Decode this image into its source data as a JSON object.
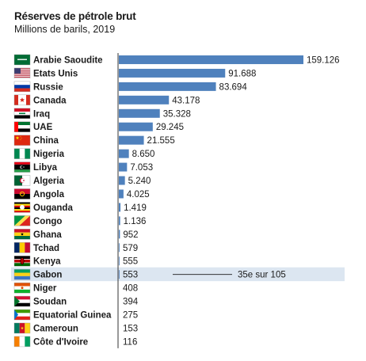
{
  "chart_data": {
    "type": "bar",
    "orientation": "horizontal",
    "title": "Réserves de pétrole brut",
    "subtitle": "Millions de barils, 2019",
    "categories": [
      "Arabie Saoudite",
      "Etats Unis",
      "Russie",
      "Canada",
      "Iraq",
      "UAE",
      "China",
      "Nigeria",
      "Libya",
      "Algeria",
      "Angola",
      "Ouganda",
      "Congo",
      "Ghana",
      "Tchad",
      "Kenya",
      "Gabon",
      "Niger",
      "Soudan",
      "Equatorial Guinea",
      "Cameroun",
      "Côte d'Ivoire"
    ],
    "values": [
      159126,
      91688,
      83694,
      43178,
      35328,
      29245,
      21555,
      8650,
      7053,
      5240,
      4025,
      1419,
      1136,
      952,
      579,
      555,
      553,
      408,
      394,
      275,
      153,
      116
    ],
    "value_labels": [
      "159.126",
      "91.688",
      "83.694",
      "43.178",
      "35.328",
      "29.245",
      "21.555",
      "8.650",
      "7.053",
      "5.240",
      "4.025",
      "1.419",
      "1.136",
      "952",
      "579",
      "555",
      "553",
      "408",
      "394",
      "275",
      "153",
      "116"
    ],
    "flags": [
      "saudi",
      "usa",
      "russia",
      "canada",
      "iraq",
      "uae",
      "china",
      "nigeria",
      "libya",
      "algeria",
      "angola",
      "uganda",
      "congo",
      "ghana",
      "chad",
      "kenya",
      "gabon",
      "niger",
      "sudan",
      "eqguinea",
      "cameroon",
      "ivorycoast"
    ],
    "bar_color": "#4f81bd",
    "highlight": {
      "category": "Gabon",
      "color": "#dce6f1",
      "annotation": "35e sur 105"
    },
    "grid": false,
    "legend": "none"
  }
}
